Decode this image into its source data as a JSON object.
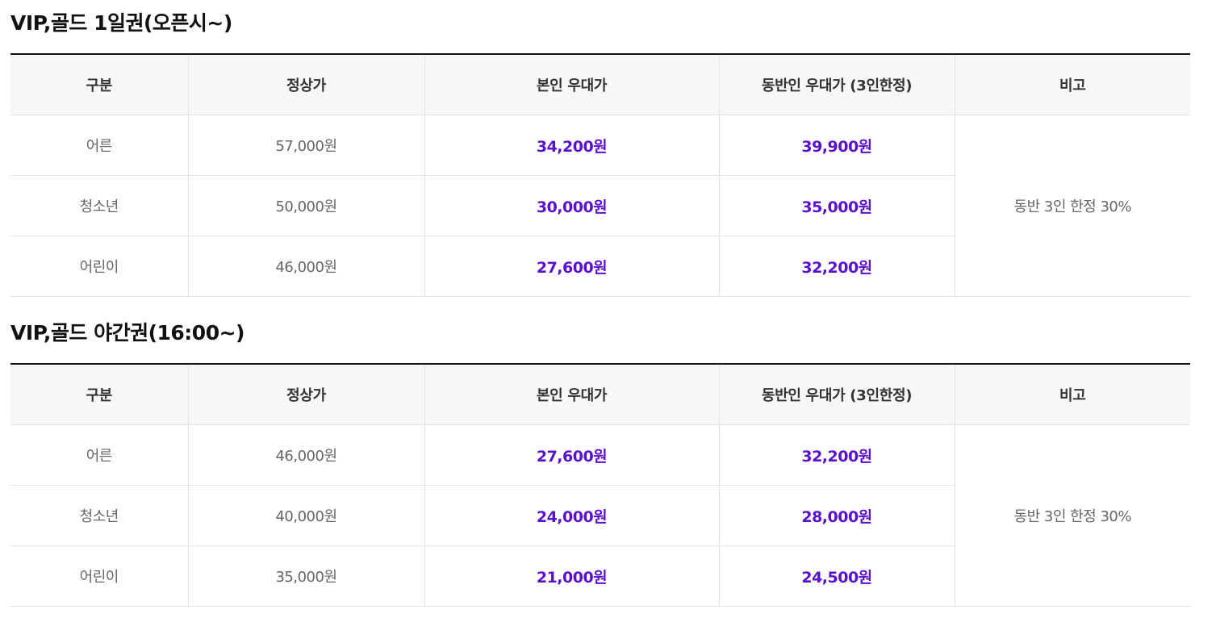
{
  "sections": [
    {
      "title": "VIP,골드 1일권(오픈시~)",
      "headers": [
        "구분",
        "정상가",
        "본인 우대가",
        "동반인 우대가 (3인한정)",
        "비고"
      ],
      "rows": [
        {
          "category": "어른",
          "regular": "57,000원",
          "self": "34,200원",
          "companion": "39,900원"
        },
        {
          "category": "청소년",
          "regular": "50,000원",
          "self": "30,000원",
          "companion": "35,000원"
        },
        {
          "category": "어린이",
          "regular": "46,000원",
          "self": "27,600원",
          "companion": "32,200원"
        }
      ],
      "note": "동반 3인 한정 30%"
    },
    {
      "title": "VIP,골드 야간권(16:00~)",
      "headers": [
        "구분",
        "정상가",
        "본인 우대가",
        "동반인 우대가 (3인한정)",
        "비고"
      ],
      "rows": [
        {
          "category": "어른",
          "regular": "46,000원",
          "self": "27,600원",
          "companion": "32,200원"
        },
        {
          "category": "청소년",
          "regular": "40,000원",
          "self": "24,000원",
          "companion": "28,000원"
        },
        {
          "category": "어린이",
          "regular": "35,000원",
          "self": "21,000원",
          "companion": "24,500원"
        }
      ],
      "note": "동반 3인 한정 30%"
    }
  ],
  "colors": {
    "promo_price": "#5a11cc",
    "header_bg": "#f7f7f7",
    "top_rule": "#111111"
  }
}
